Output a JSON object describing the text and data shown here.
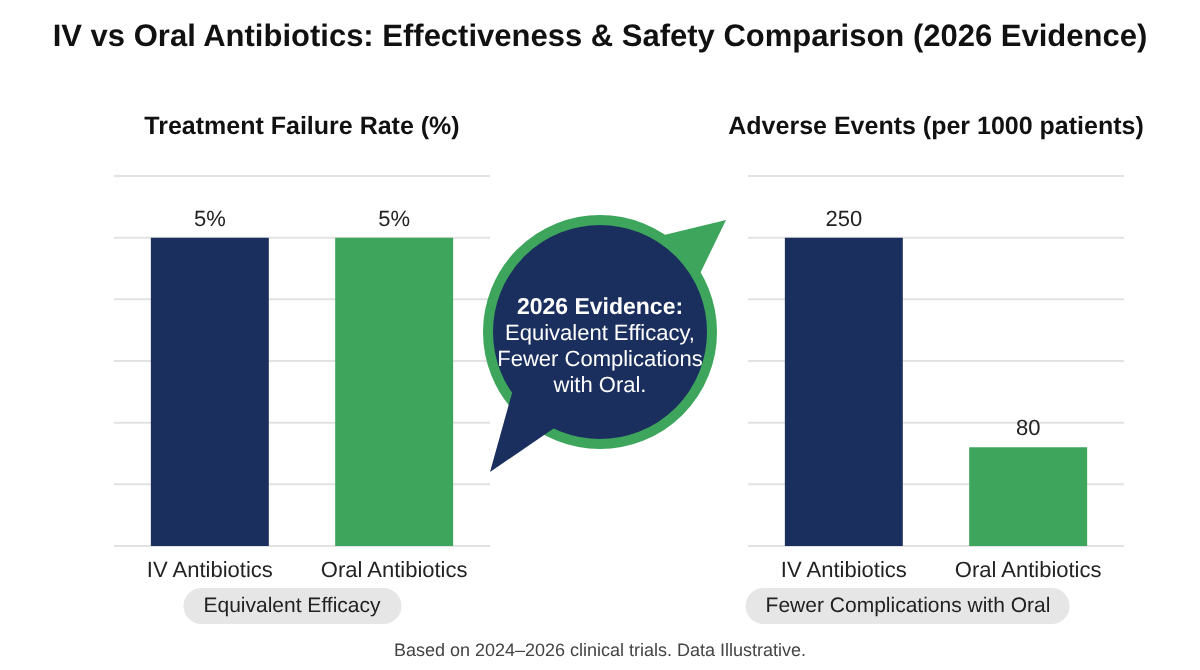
{
  "chart_data": [
    {
      "type": "bar",
      "title": "IV vs Oral Antibiotics: Effectiveness & Safety Comparison (2026 Evidence)",
      "subtitle": "Treatment Failure Rate (%)",
      "categories": [
        "IV Antibiotics",
        "Oral Antibiotics"
      ],
      "values": [
        5,
        5
      ],
      "colors": [
        "#1b2f5e",
        "#3ea55c"
      ],
      "value_labels": [
        "5%",
        "5%"
      ],
      "ylim": [
        0,
        6
      ],
      "yticks": [
        {
          "value": 0,
          "label": null
        },
        {
          "value": 1,
          "label": null
        },
        {
          "value": 2,
          "label": null
        },
        {
          "value": 3,
          "label": null
        },
        {
          "value": 4,
          "label": null
        },
        {
          "value": 5,
          "label": null
        },
        {
          "value": 6,
          "label": null
        }
      ],
      "grid": "y",
      "tick_labels": "x",
      "annotations": [
        "Equivalent Efficacy"
      ]
    },
    {
      "type": "other",
      "title": "2026 Evidence:",
      "annotations": [
        "Equivalent Efficacy, Fewer Complications with Oral."
      ]
    },
    {
      "type": "bar",
      "title": "Adverse Events (per 1000 patients)",
      "categories": [
        "IV Antibiotics",
        "Oral Antibiotics"
      ],
      "values": [
        250,
        80
      ],
      "colors": [
        "#1b2f5e",
        "#3ea55c"
      ],
      "data_labels": true,
      "ylim": [
        0,
        300
      ],
      "yticks": [
        {
          "value": 0,
          "label": null
        },
        {
          "value": 50,
          "label": null
        },
        {
          "value": 100,
          "label": null
        },
        {
          "value": 150,
          "label": null
        },
        {
          "value": 200,
          "label": null
        },
        {
          "value": 250,
          "label": null
        },
        {
          "value": 300,
          "label": null
        }
      ],
      "grid": "y",
      "tick_labels": "x",
      "annotations": [
        "Fewer Complications with Oral",
        "Based on 2024–2026 clinical trials. Data Illustrative."
      ]
    }
  ]
}
